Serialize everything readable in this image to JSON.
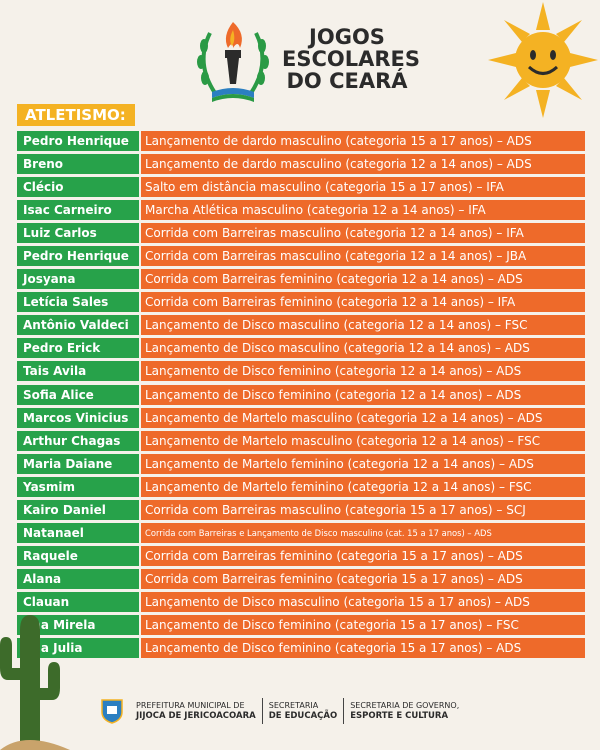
{
  "header": {
    "title_lines": [
      "JOGOS",
      "ESCOLARES",
      "DO CEARÁ"
    ]
  },
  "section": {
    "label": "ATLETISMO:"
  },
  "rows": [
    {
      "name": "Pedro Henrique",
      "event": "Lançamento de dardo masculino (categoria 15 a 17 anos) – ADS"
    },
    {
      "name": "Breno",
      "event": "Lançamento de dardo masculino (categoria 12 a 14 anos) – ADS"
    },
    {
      "name": "Clécio",
      "event": "Salto em distância masculino (categoria 15 a 17 anos) – IFA"
    },
    {
      "name": "Isac Carneiro",
      "event": "Marcha Atlética masculino (categoria 12 a 14 anos) – IFA"
    },
    {
      "name": "Luiz Carlos",
      "event": "Corrida com Barreiras masculino (categoria 12 a 14 anos) – IFA"
    },
    {
      "name": "Pedro Henrique",
      "event": "Corrida com Barreiras masculino (categoria 12 a 14 anos) – JBA"
    },
    {
      "name": "Josyana",
      "event": "Corrida com Barreiras feminino (categoria 12 a 14 anos) – ADS"
    },
    {
      "name": "Letícia Sales",
      "event": "Corrida com Barreiras feminino (categoria 12 a 14 anos) – IFA"
    },
    {
      "name": "Antônio Valdeci",
      "event": "Lançamento de Disco masculino (categoria 12 a 14 anos) – FSC"
    },
    {
      "name": "Pedro Erick",
      "event": "Lançamento de Disco masculino (categoria 12 a 14 anos) – ADS"
    },
    {
      "name": "Tais Avila",
      "event": "Lançamento de Disco feminino (categoria 12 a 14 anos) – ADS"
    },
    {
      "name": "Sofia Alice",
      "event": "Lançamento de Disco feminino (categoria 12 a 14 anos) – ADS"
    },
    {
      "name": "Marcos Vinicius",
      "event": "Lançamento de Martelo masculino (categoria 12 a 14 anos) – ADS"
    },
    {
      "name": "Arthur Chagas",
      "event": "Lançamento de Martelo masculino (categoria 12 a 14 anos) – FSC"
    },
    {
      "name": "Maria Daiane",
      "event": "Lançamento de Martelo feminino (categoria 12 a 14 anos) – ADS"
    },
    {
      "name": "Yasmim",
      "event": "Lançamento de Martelo feminino (categoria 12 a 14 anos) – FSC"
    },
    {
      "name": "Kairo Daniel",
      "event": "Corrida com Barreiras masculino (categoria 15 a 17 anos) – SCJ"
    },
    {
      "name": "Natanael",
      "event": "Corrida com Barreiras e Lançamento de Disco masculino (cat. 15 a 17 anos) – ADS",
      "small": true
    },
    {
      "name": "Raquele",
      "event": "Corrida com Barreiras feminino (categoria 15 a 17 anos) – ADS"
    },
    {
      "name": "Alana",
      "event": "Corrida com Barreiras feminino (categoria 15 a 17 anos) – ADS"
    },
    {
      "name": "Clauan",
      "event": "Lançamento de Disco masculino (categoria 15 a 17 anos) – ADS"
    },
    {
      "name": "Ana Mirela",
      "event": "Lançamento de Disco feminino (categoria 15 a 17 anos) – FSC"
    },
    {
      "name": "Ana Julia",
      "event": "Lançamento de Disco feminino (categoria 15 a 17 anos) – ADS"
    }
  ],
  "footer": {
    "org1_line1": "PREFEITURA MUNICIPAL DE",
    "org1_line2": "JIJOCA DE JERICOACOARA",
    "org2_line1": "SECRETARIA",
    "org2_line2": "DE EDUCAÇÃO",
    "org3_line1": "SECRETARIA DE GOVERNO,",
    "org3_line2": "ESPORTE E CULTURA"
  },
  "colors": {
    "name_bg": "#27a24a",
    "event_bg": "#ee6a2a",
    "label_bg": "#f4b223",
    "background": "#f5f1ea"
  },
  "icons": [
    "torch-laurel-logo",
    "smiling-sun-icon",
    "cactus-icon",
    "municipal-crest-icon"
  ]
}
